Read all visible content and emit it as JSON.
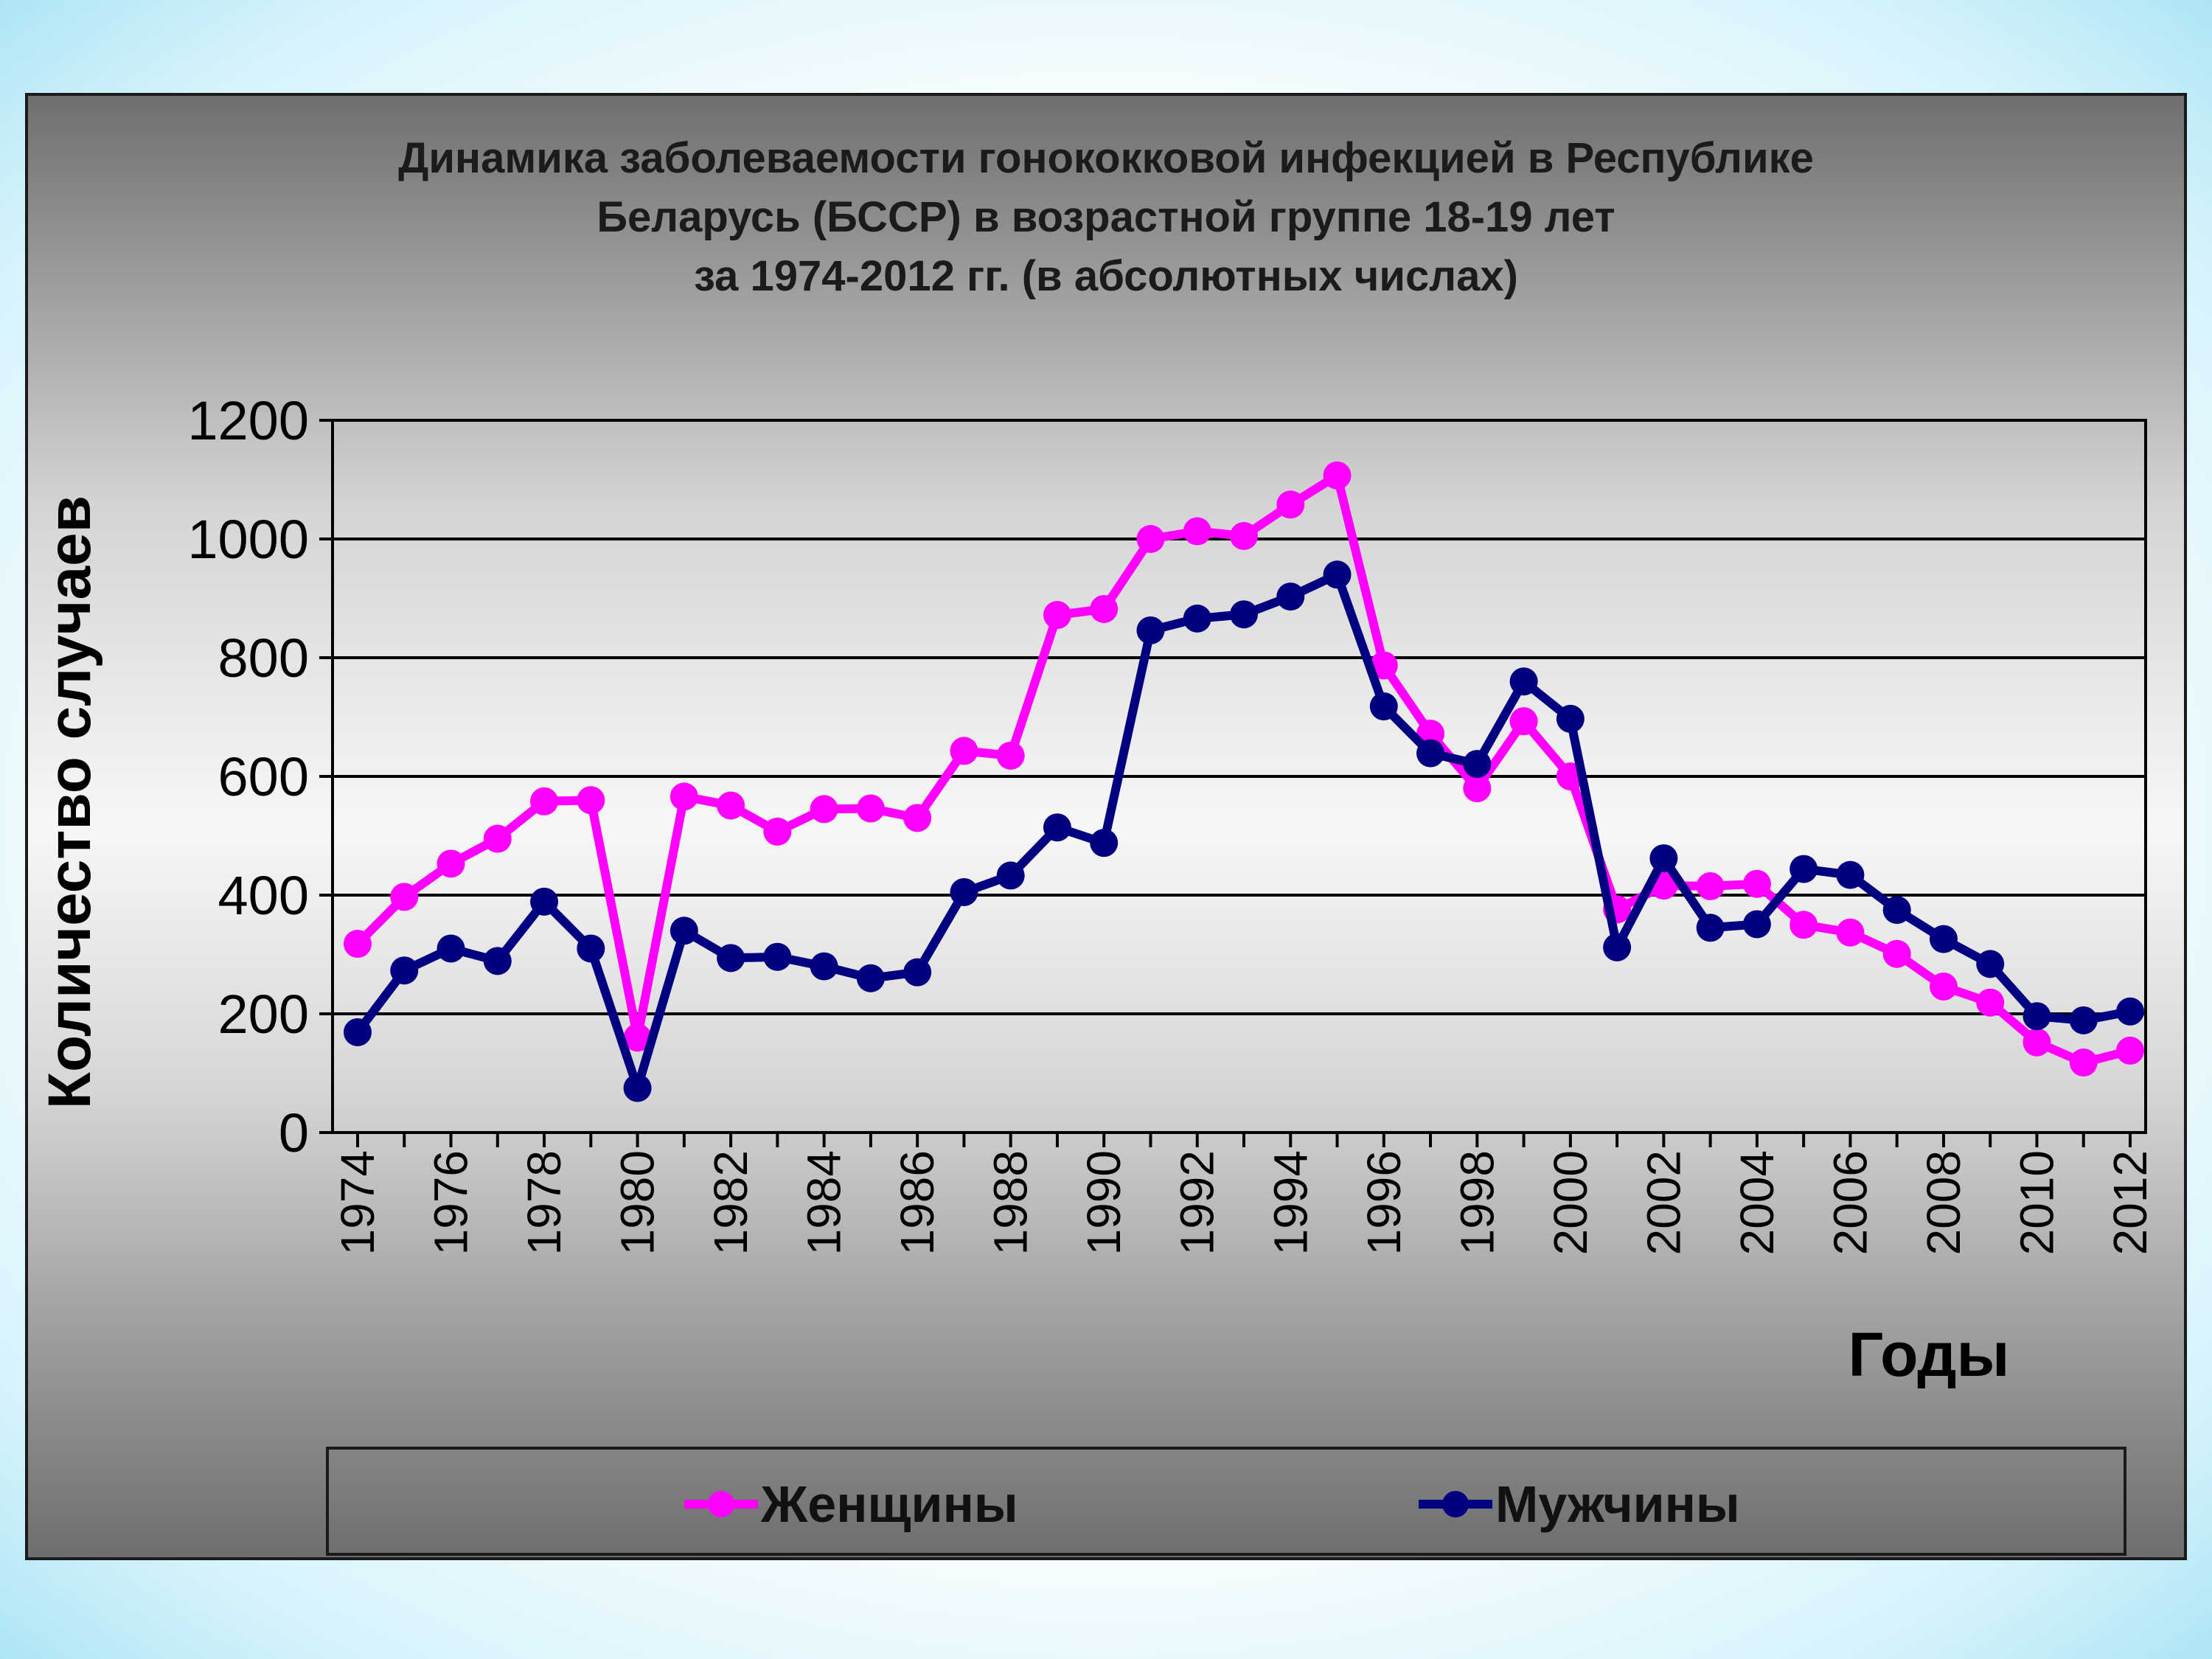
{
  "chart_data": {
    "type": "line",
    "title": [
      "Динамика заболеваемости гонококковой инфекцией в Республике",
      "Беларусь (БССР) в возрастной группе 18-19 лет",
      "за 1974-2012 гг. (в абсолютных числах)"
    ],
    "xlabel": "Годы",
    "ylabel": "Количество случаев",
    "x": [
      1974,
      1975,
      1976,
      1977,
      1978,
      1979,
      1980,
      1981,
      1982,
      1983,
      1984,
      1985,
      1986,
      1987,
      1988,
      1989,
      1990,
      1991,
      1992,
      1993,
      1994,
      1995,
      1996,
      1997,
      1998,
      1999,
      2000,
      2001,
      2002,
      2003,
      2004,
      2005,
      2006,
      2007,
      2008,
      2009,
      2010,
      2011,
      2012
    ],
    "x_tick_labels": [
      "1974",
      "1976",
      "1978",
      "1980",
      "1982",
      "1984",
      "1986",
      "1988",
      "1990",
      "1992",
      "1994",
      "1996",
      "1998",
      "2000",
      "2002",
      "2004",
      "2006",
      "2008",
      "2010",
      "2012"
    ],
    "ylim": [
      0,
      1200
    ],
    "y_ticks": [
      0,
      200,
      400,
      600,
      800,
      1000,
      1200
    ],
    "grid": true,
    "legend_position": "bottom",
    "series": [
      {
        "name": "Женщины",
        "color": "#ff00ff",
        "marker": "circle",
        "values": [
          318,
          397,
          453,
          495,
          558,
          560,
          160,
          566,
          551,
          507,
          545,
          546,
          530,
          643,
          635,
          872,
          882,
          1000,
          1013,
          1005,
          1058,
          1107,
          787,
          672,
          580,
          693,
          600,
          376,
          416,
          415,
          419,
          350,
          337,
          301,
          246,
          219,
          152,
          118,
          138
        ]
      },
      {
        "name": "Мужчины",
        "color": "#000080",
        "marker": "circle",
        "values": [
          169,
          273,
          310,
          289,
          389,
          310,
          75,
          340,
          294,
          296,
          280,
          260,
          270,
          405,
          433,
          514,
          488,
          846,
          866,
          873,
          903,
          940,
          718,
          639,
          621,
          760,
          697,
          312,
          462,
          345,
          351,
          444,
          434,
          375,
          326,
          284,
          196,
          189,
          204
        ]
      }
    ]
  }
}
